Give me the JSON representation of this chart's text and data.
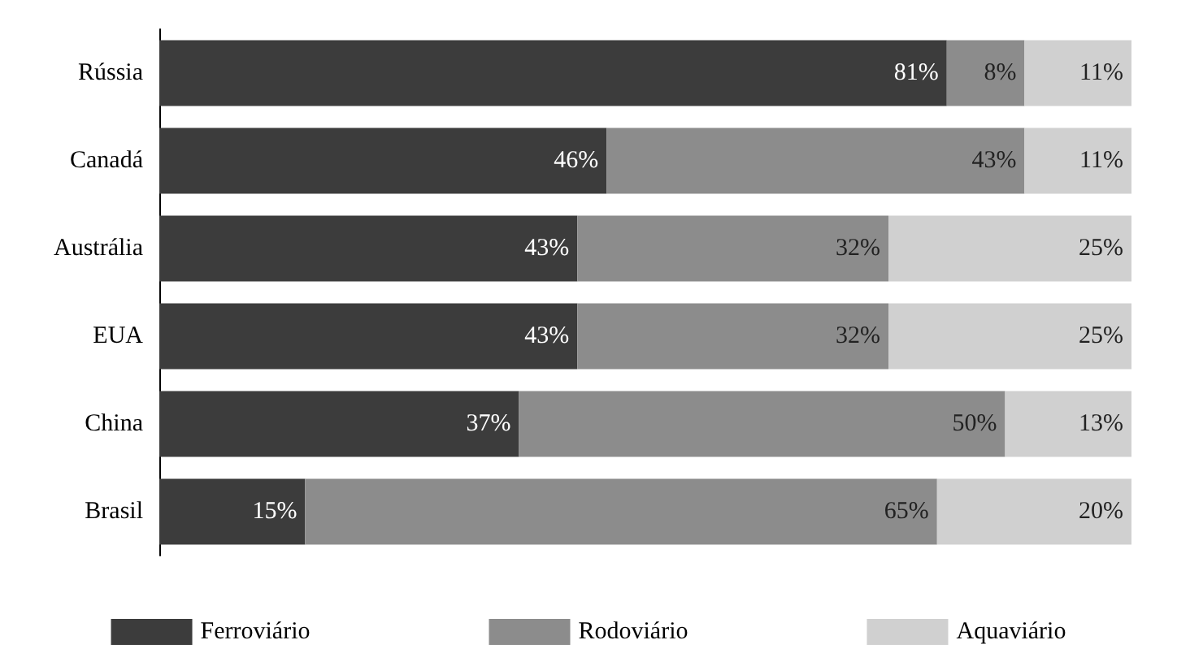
{
  "chart_data": {
    "type": "bar",
    "orientation": "horizontal",
    "stacked": true,
    "categories": [
      "Rússia",
      "Canadá",
      "Austrália",
      "EUA",
      "China",
      "Brasil"
    ],
    "series": [
      {
        "name": "Ferroviário",
        "color": "#3c3c3c",
        "values": [
          81,
          46,
          43,
          43,
          37,
          15
        ],
        "value_labels": [
          "81%",
          "46%",
          "43%",
          "43%",
          "37%",
          "15%"
        ]
      },
      {
        "name": "Rodoviário",
        "color": "#8c8c8c",
        "values": [
          8,
          43,
          32,
          32,
          50,
          65
        ],
        "value_labels": [
          "8%",
          "43%",
          "32%",
          "32%",
          "50%",
          "65%"
        ]
      },
      {
        "name": "Aquaviário",
        "color": "#d0d0d0",
        "values": [
          11,
          11,
          25,
          25,
          13,
          20
        ],
        "value_labels": [
          "11%",
          "11%",
          "25%",
          "25%",
          "13%",
          "20%"
        ]
      }
    ],
    "xlim": [
      0,
      100
    ],
    "tick_labels": "y",
    "grid": false,
    "legend": "bottom"
  }
}
